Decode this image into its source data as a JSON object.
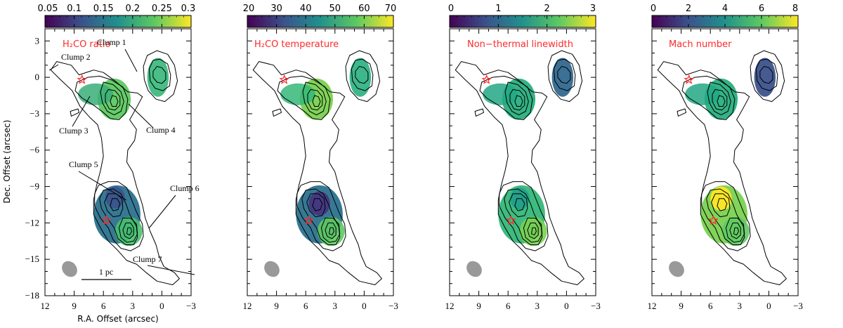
{
  "chart_data": {
    "type": "heatmap",
    "xlabel": "R.A. Offset (arcsec)",
    "ylabel": "Dec. Offset (arcsec)",
    "xlim": [
      12,
      -3
    ],
    "ylim": [
      -18,
      4
    ],
    "x_ticks": [
      12,
      9,
      6,
      3,
      0,
      -3
    ],
    "y_ticks": [
      3,
      0,
      -3,
      -6,
      -9,
      -12,
      -15,
      -18
    ],
    "scale_bar_label": "1 pc",
    "panels": [
      {
        "label": "H₂CO ratio",
        "colorbar_range": [
          0.05,
          0.3
        ],
        "colorbar_ticks": [
          "0.05",
          "0.1",
          "0.15",
          "0.2",
          "0.25",
          "0.3"
        ]
      },
      {
        "label": "H₂CO temperature",
        "colorbar_range": [
          20,
          70
        ],
        "colorbar_ticks": [
          "20",
          "30",
          "40",
          "50",
          "60",
          "70"
        ]
      },
      {
        "label": "Non−thermal linewidth",
        "colorbar_range": [
          0,
          3
        ],
        "colorbar_ticks": [
          "0",
          "1",
          "2",
          "3"
        ]
      },
      {
        "label": "Mach number",
        "colorbar_range": [
          0,
          8
        ],
        "colorbar_ticks": [
          "0",
          "2",
          "4",
          "6",
          "8"
        ]
      }
    ],
    "clumps": [
      {
        "name": "Clump 1",
        "ra": 0.7,
        "dec": 0.3
      },
      {
        "name": "Clump 2",
        "ra": 11.2,
        "dec": 0.3
      },
      {
        "name": "Clump 3",
        "ra": 8.6,
        "dec": -0.5
      },
      {
        "name": "Clump 4",
        "ra": 5.0,
        "dec": -2.0
      },
      {
        "name": "Clump 5",
        "ra": 4.6,
        "dec": -10.3
      },
      {
        "name": "Clump 6",
        "ra": 3.4,
        "dec": -12.5
      },
      {
        "name": "Clump 7",
        "ra": -0.5,
        "dec": -16.3
      }
    ],
    "stars": [
      {
        "ra": 8.2,
        "dec": -0.2
      },
      {
        "ra": 5.7,
        "dec": -11.8
      }
    ],
    "colormap": [
      "#440154",
      "#3b528b",
      "#21918c",
      "#5ec962",
      "#fde725"
    ]
  }
}
